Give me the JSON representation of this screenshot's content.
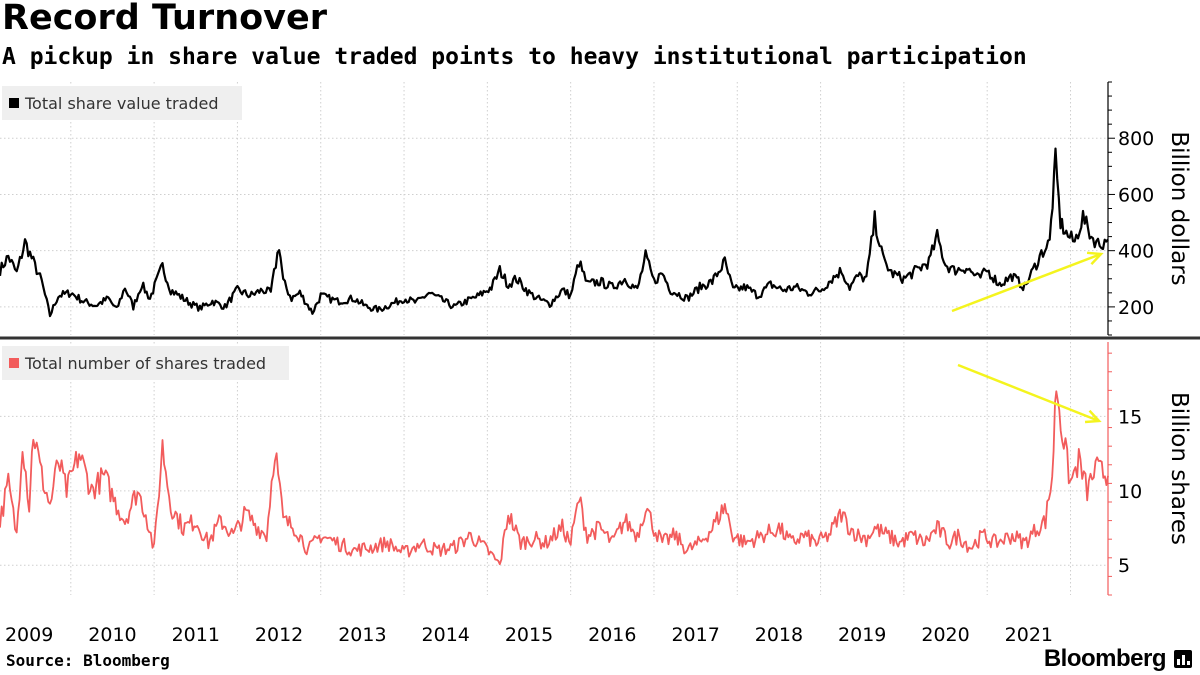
{
  "header": {
    "title": "Record Turnover",
    "subtitle": "A pickup in share value traded points to heavy institutional participation"
  },
  "footer": {
    "source": "Source: Bloomberg",
    "brand": "Bloomberg"
  },
  "colors": {
    "value_series": "#000000",
    "shares_series": "#f25c5c",
    "arrow": "#f4f41e",
    "grid": "#cfcfcf",
    "legend_bg": "#efefef"
  },
  "chart_data": [
    {
      "type": "line",
      "title": "Record Turnover",
      "legend": "Total share value traded",
      "legend_position": "top-left",
      "ylabel": "Billion dollars",
      "yticks": [
        200,
        400,
        600,
        800
      ],
      "ylim": [
        100,
        1000
      ],
      "xlim": [
        2008.65,
        2021.95
      ],
      "annotation": "yellow arrow pointing up (rising trend)",
      "anchors": [
        [
          2008.65,
          330
        ],
        [
          2008.75,
          380
        ],
        [
          2008.85,
          320
        ],
        [
          2008.95,
          430
        ],
        [
          2009.05,
          360
        ],
        [
          2009.15,
          290
        ],
        [
          2009.25,
          170
        ],
        [
          2009.35,
          240
        ],
        [
          2009.5,
          250
        ],
        [
          2009.65,
          220
        ],
        [
          2009.8,
          205
        ],
        [
          2009.95,
          230
        ],
        [
          2010.05,
          190
        ],
        [
          2010.15,
          270
        ],
        [
          2010.25,
          200
        ],
        [
          2010.35,
          280
        ],
        [
          2010.45,
          230
        ],
        [
          2010.6,
          345
        ],
        [
          2010.7,
          260
        ],
        [
          2010.8,
          240
        ],
        [
          2010.95,
          210
        ],
        [
          2011.05,
          195
        ],
        [
          2011.2,
          220
        ],
        [
          2011.35,
          200
        ],
        [
          2011.5,
          260
        ],
        [
          2011.65,
          240
        ],
        [
          2011.8,
          260
        ],
        [
          2011.9,
          250
        ],
        [
          2012.0,
          420
        ],
        [
          2012.05,
          290
        ],
        [
          2012.15,
          230
        ],
        [
          2012.25,
          250
        ],
        [
          2012.4,
          180
        ],
        [
          2012.5,
          240
        ],
        [
          2012.7,
          220
        ],
        [
          2012.9,
          230
        ],
        [
          2013.05,
          200
        ],
        [
          2013.2,
          190
        ],
        [
          2013.35,
          210
        ],
        [
          2013.5,
          230
        ],
        [
          2013.65,
          215
        ],
        [
          2013.8,
          250
        ],
        [
          2013.95,
          225
        ],
        [
          2014.1,
          200
        ],
        [
          2014.25,
          220
        ],
        [
          2014.4,
          240
        ],
        [
          2014.55,
          270
        ],
        [
          2014.65,
          330
        ],
        [
          2014.75,
          280
        ],
        [
          2014.85,
          300
        ],
        [
          2015.0,
          250
        ],
        [
          2015.1,
          230
        ],
        [
          2015.25,
          210
        ],
        [
          2015.4,
          260
        ],
        [
          2015.5,
          240
        ],
        [
          2015.6,
          360
        ],
        [
          2015.7,
          280
        ],
        [
          2015.85,
          290
        ],
        [
          2016.0,
          270
        ],
        [
          2016.15,
          300
        ],
        [
          2016.3,
          260
        ],
        [
          2016.4,
          380
        ],
        [
          2016.5,
          290
        ],
        [
          2016.6,
          320
        ],
        [
          2016.7,
          260
        ],
        [
          2016.9,
          230
        ],
        [
          2017.05,
          270
        ],
        [
          2017.2,
          290
        ],
        [
          2017.35,
          360
        ],
        [
          2017.45,
          260
        ],
        [
          2017.6,
          270
        ],
        [
          2017.75,
          240
        ],
        [
          2017.9,
          280
        ],
        [
          2018.05,
          260
        ],
        [
          2018.2,
          270
        ],
        [
          2018.35,
          250
        ],
        [
          2018.5,
          260
        ],
        [
          2018.6,
          290
        ],
        [
          2018.75,
          330
        ],
        [
          2018.85,
          270
        ],
        [
          2018.95,
          310
        ],
        [
          2019.05,
          300
        ],
        [
          2019.15,
          510
        ],
        [
          2019.25,
          370
        ],
        [
          2019.35,
          320
        ],
        [
          2019.5,
          300
        ],
        [
          2019.65,
          330
        ],
        [
          2019.8,
          360
        ],
        [
          2019.9,
          450
        ],
        [
          2020.0,
          350
        ],
        [
          2020.1,
          330
        ],
        [
          2020.25,
          340
        ],
        [
          2020.4,
          300
        ],
        [
          2020.5,
          330
        ],
        [
          2020.65,
          280
        ],
        [
          2020.8,
          310
        ],
        [
          2020.95,
          270
        ],
        [
          2021.05,
          330
        ],
        [
          2021.15,
          390
        ],
        [
          2021.25,
          430
        ],
        [
          2021.32,
          720
        ],
        [
          2021.38,
          500
        ],
        [
          2021.45,
          460
        ],
        [
          2021.55,
          430
        ],
        [
          2021.65,
          520
        ],
        [
          2021.75,
          450
        ],
        [
          2021.85,
          420
        ],
        [
          2021.95,
          440
        ]
      ]
    },
    {
      "type": "line",
      "legend": "Total number of shares traded",
      "legend_position": "top-left",
      "ylabel": "Billion shares",
      "yticks": [
        5,
        10,
        15
      ],
      "ylim": [
        3,
        20
      ],
      "xlim": [
        2008.65,
        2021.95
      ],
      "annotation": "yellow arrow pointing down (falling trend)",
      "anchors": [
        [
          2008.65,
          8
        ],
        [
          2008.75,
          10.5
        ],
        [
          2008.85,
          7
        ],
        [
          2008.92,
          13.5
        ],
        [
          2009.0,
          9
        ],
        [
          2009.05,
          14
        ],
        [
          2009.15,
          11
        ],
        [
          2009.25,
          9
        ],
        [
          2009.35,
          12
        ],
        [
          2009.45,
          10
        ],
        [
          2009.6,
          12.5
        ],
        [
          2009.75,
          10
        ],
        [
          2009.9,
          11
        ],
        [
          2010.05,
          9
        ],
        [
          2010.15,
          8
        ],
        [
          2010.3,
          10
        ],
        [
          2010.4,
          8.5
        ],
        [
          2010.5,
          6
        ],
        [
          2010.6,
          13
        ],
        [
          2010.7,
          9
        ],
        [
          2010.85,
          7.5
        ],
        [
          2011.0,
          8
        ],
        [
          2011.15,
          6.5
        ],
        [
          2011.3,
          8
        ],
        [
          2011.45,
          7
        ],
        [
          2011.6,
          8.5
        ],
        [
          2011.75,
          7.5
        ],
        [
          2011.85,
          7
        ],
        [
          2011.95,
          13
        ],
        [
          2012.05,
          8
        ],
        [
          2012.2,
          7.5
        ],
        [
          2012.35,
          6
        ],
        [
          2012.5,
          7
        ],
        [
          2012.7,
          6.5
        ],
        [
          2012.9,
          6
        ],
        [
          2013.1,
          6.2
        ],
        [
          2013.3,
          6.5
        ],
        [
          2013.5,
          5.8
        ],
        [
          2013.7,
          6.5
        ],
        [
          2013.9,
          6
        ],
        [
          2014.1,
          6.2
        ],
        [
          2014.3,
          7
        ],
        [
          2014.5,
          6
        ],
        [
          2014.65,
          5
        ],
        [
          2014.75,
          8.5
        ],
        [
          2014.9,
          6.5
        ],
        [
          2015.05,
          6.8
        ],
        [
          2015.2,
          6.5
        ],
        [
          2015.4,
          7.5
        ],
        [
          2015.5,
          6.5
        ],
        [
          2015.6,
          9.5
        ],
        [
          2015.7,
          7
        ],
        [
          2015.85,
          7.5
        ],
        [
          2016.0,
          6.5
        ],
        [
          2016.15,
          8
        ],
        [
          2016.3,
          7
        ],
        [
          2016.4,
          9
        ],
        [
          2016.5,
          7.5
        ],
        [
          2016.6,
          6.5
        ],
        [
          2016.75,
          7
        ],
        [
          2016.9,
          6
        ],
        [
          2017.05,
          6.5
        ],
        [
          2017.2,
          7.5
        ],
        [
          2017.35,
          9
        ],
        [
          2017.45,
          7
        ],
        [
          2017.6,
          6.5
        ],
        [
          2017.8,
          7
        ],
        [
          2018.0,
          7.5
        ],
        [
          2018.15,
          6.5
        ],
        [
          2018.3,
          7
        ],
        [
          2018.45,
          6.5
        ],
        [
          2018.6,
          7
        ],
        [
          2018.75,
          8.5
        ],
        [
          2018.85,
          7.5
        ],
        [
          2018.95,
          7
        ],
        [
          2019.05,
          6.8
        ],
        [
          2019.15,
          7.5
        ],
        [
          2019.3,
          7
        ],
        [
          2019.45,
          6.5
        ],
        [
          2019.6,
          7
        ],
        [
          2019.75,
          6.5
        ],
        [
          2019.9,
          7.5
        ],
        [
          2020.05,
          6.5
        ],
        [
          2020.15,
          7
        ],
        [
          2020.3,
          6.2
        ],
        [
          2020.45,
          7
        ],
        [
          2020.6,
          6.5
        ],
        [
          2020.8,
          7
        ],
        [
          2020.95,
          6.5
        ],
        [
          2021.1,
          7.5
        ],
        [
          2021.2,
          8
        ],
        [
          2021.28,
          11
        ],
        [
          2021.33,
          17.3
        ],
        [
          2021.4,
          14
        ],
        [
          2021.5,
          10.5
        ],
        [
          2021.6,
          12
        ],
        [
          2021.7,
          10
        ],
        [
          2021.8,
          11.5
        ],
        [
          2021.95,
          11
        ]
      ]
    }
  ],
  "xaxis": {
    "year_labels": [
      "2009",
      "2010",
      "2011",
      "2012",
      "2013",
      "2014",
      "2015",
      "2016",
      "2017",
      "2018",
      "2019",
      "2020",
      "2021"
    ]
  }
}
